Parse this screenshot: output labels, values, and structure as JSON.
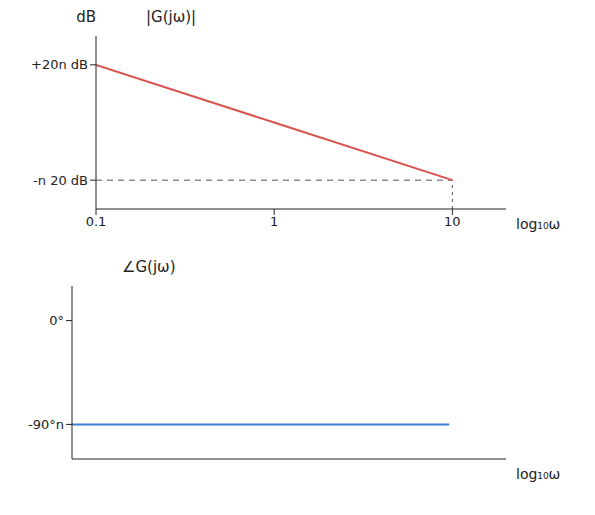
{
  "chart_data": [
    {
      "type": "line",
      "title": "|G(jω)|",
      "y_label": "dB",
      "x_label": "log₁₀ω",
      "x": [
        0.1,
        1,
        10
      ],
      "values": [
        20,
        0,
        -20
      ],
      "color": "#d9534f",
      "log": "x",
      "xlim": [
        0.1,
        20
      ],
      "xticks": [
        0.1,
        1,
        10
      ],
      "ylim": [
        -30,
        30
      ],
      "yticks": [
        {
          "value": 20,
          "label": "+20n dB"
        },
        {
          "value": -20,
          "label": "-n 20 dB"
        }
      ],
      "grid": false
    },
    {
      "type": "line",
      "title": "∠G(jω)",
      "x_label": "log₁₀ω",
      "x": [
        0.1,
        10
      ],
      "values": [
        -90,
        -90
      ],
      "color": "#3b7dd8",
      "log": "x",
      "xlim": [
        0.1,
        20
      ],
      "ylim": [
        -120,
        30
      ],
      "yticks": [
        {
          "value": 0,
          "label": "0°"
        },
        {
          "value": -90,
          "label": "-90°n"
        }
      ],
      "tick_labels": "y",
      "grid": false
    }
  ]
}
